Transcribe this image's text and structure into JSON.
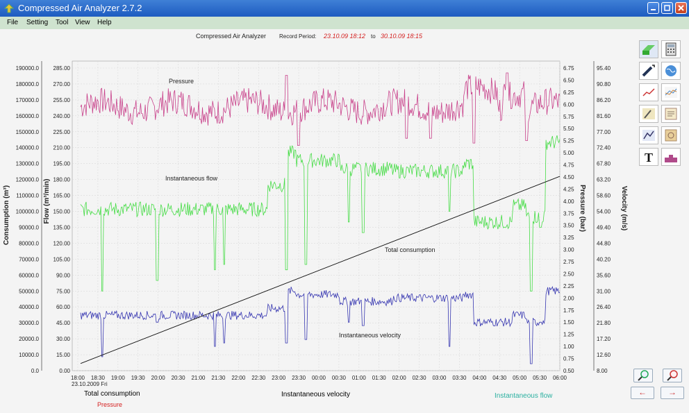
{
  "window": {
    "title": "Compressed Air Analyzer 2.7.2"
  },
  "menu": [
    "File",
    "Setting",
    "Tool",
    "View",
    "Help"
  ],
  "header": {
    "app_name": "Compressed Air Analyzer",
    "record_label": "Record Period:",
    "start": "23.10.09  18:12",
    "to": "to",
    "end": "30.10.09  18:15"
  },
  "chart_data": {
    "type": "line",
    "x": {
      "start": "18:00",
      "end": "06:00",
      "ticks": [
        "18:00",
        "18:30",
        "19:00",
        "19:30",
        "20:00",
        "20:30",
        "21:00",
        "21:30",
        "22:00",
        "22:30",
        "23:00",
        "23:30",
        "00:00",
        "00:30",
        "01:00",
        "01:30",
        "02:00",
        "02:30",
        "03:00",
        "03:30",
        "04:00",
        "04:30",
        "05:00",
        "05:30",
        "06:00"
      ],
      "first_tick_date": "23.10.2009 Fri"
    },
    "axes": {
      "consumption": {
        "label": "Consumption (m³)",
        "range": [
          0,
          190000
        ],
        "ticks": [
          "0.0",
          "10000.0",
          "20000.0",
          "30000.0",
          "40000.0",
          "50000.0",
          "60000.0",
          "70000.0",
          "80000.0",
          "90000.0",
          "100000.0",
          "110000.0",
          "120000.0",
          "130000.0",
          "140000.0",
          "150000.0",
          "160000.0",
          "170000.0",
          "180000.0",
          "190000.0"
        ]
      },
      "flow": {
        "label": "Flow (m³/min)",
        "range": [
          0,
          285
        ],
        "ticks": [
          "0.00",
          "15.00",
          "30.00",
          "45.00",
          "60.00",
          "75.00",
          "90.00",
          "105.00",
          "120.00",
          "135.00",
          "150.00",
          "165.00",
          "180.00",
          "195.00",
          "210.00",
          "225.00",
          "240.00",
          "255.00",
          "270.00",
          "285.00"
        ]
      },
      "pressure": {
        "label": "Pressure (bar)",
        "range": [
          0.5,
          6.75
        ],
        "ticks": [
          "0.50",
          "0.75",
          "1.00",
          "1.25",
          "1.50",
          "1.75",
          "2.00",
          "2.25",
          "2.50",
          "2.75",
          "3.00",
          "3.25",
          "3.50",
          "3.75",
          "4.00",
          "4.25",
          "4.50",
          "4.75",
          "5.00",
          "5.25",
          "5.50",
          "5.75",
          "6.00",
          "6.25",
          "6.50",
          "6.75"
        ]
      },
      "velocity": {
        "label": "Velocity (m/s)",
        "range": [
          8.0,
          95.4
        ],
        "ticks": [
          "8.00",
          "12.60",
          "17.20",
          "21.80",
          "26.40",
          "31.00",
          "35.60",
          "40.20",
          "44.80",
          "49.40",
          "54.00",
          "58.60",
          "63.20",
          "67.80",
          "72.40",
          "77.00",
          "81.60",
          "86.20",
          "90.80",
          "95.40"
        ]
      }
    },
    "annotations": {
      "pressure": "Pressure",
      "flow": "Instantaneous flow",
      "consumption": "Total consumption",
      "velocity": "Instantaneous velocity"
    },
    "series": [
      {
        "name": "Pressure",
        "color": "#c8408a",
        "axis": "pressure",
        "shape": "noisy",
        "base": 5.95,
        "amp": 0.28,
        "spike_down": [
          [
            0.68,
            5.3
          ],
          [
            0.82,
            5.2
          ],
          [
            0.93,
            5.25
          ],
          [
            0.455,
            5.15
          ],
          [
            0.73,
            5.3
          ]
        ],
        "spike_up": [
          [
            0.43,
            6.6
          ],
          [
            0.89,
            6.65
          ]
        ]
      },
      {
        "name": "Instantaneous flow",
        "color": "#45dc45",
        "axis": "flow",
        "shape": "steps"
      },
      {
        "name": "Total consumption",
        "color": "#111111",
        "axis": "consumption",
        "start_value": 4500,
        "end_value": 122000
      },
      {
        "name": "Instantaneous velocity",
        "color": "#3535b0",
        "axis": "velocity",
        "shape": "steps"
      }
    ],
    "grid": true
  },
  "legend": {
    "total_consumption": "Total consumption",
    "pressure": "Pressure",
    "instantaneous_velocity": "Instantaneous velocity",
    "instantaneous_flow": "Instantaneous flow"
  },
  "toolbar": {
    "tools": [
      "export-icon",
      "calculator-icon",
      "cursor-icon",
      "globe-icon",
      "line-chart-icon",
      "compare-chart-icon",
      "edit-chart-icon",
      "notes-icon",
      "chart-settings-icon",
      "report-icon",
      "text-icon",
      "area-chart-icon"
    ]
  },
  "nav": {
    "zoom_in": "+",
    "zoom_out": "-",
    "prev": "←",
    "next": "→"
  },
  "colors": {
    "pressure": "#c8408a",
    "flow": "#45dc45",
    "velocity": "#3535b0",
    "consumption": "#111111",
    "grid": "#d9d9d9"
  }
}
